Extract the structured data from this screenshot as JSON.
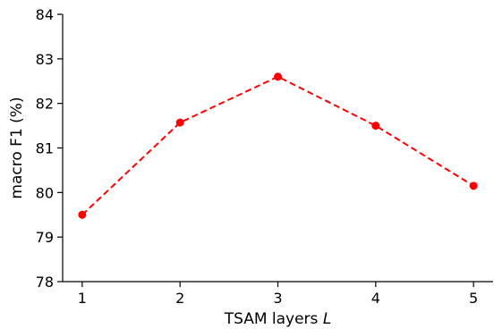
{
  "chart_data": {
    "type": "line",
    "x": [
      1,
      2,
      3,
      4,
      5
    ],
    "series": [
      {
        "values": [
          79.5,
          81.57,
          82.6,
          81.5,
          80.15
        ],
        "color": "#ff0000",
        "line_style": "dashed",
        "marker": "circle"
      }
    ],
    "xlabel_main": "TSAM layers ",
    "xlabel_var": "L",
    "ylabel": "macro F1 (%)",
    "xlim": [
      0.8,
      5.2
    ],
    "ylim": [
      78,
      84
    ],
    "xticks": [
      1,
      2,
      3,
      4,
      5
    ],
    "yticks": [
      78,
      79,
      80,
      81,
      82,
      83,
      84
    ],
    "grid": false,
    "legend": "none"
  }
}
